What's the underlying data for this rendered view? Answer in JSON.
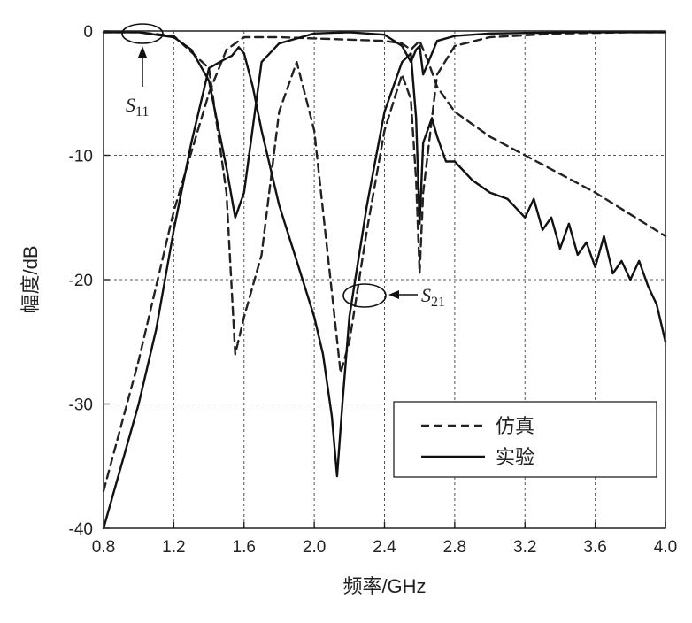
{
  "chart_data": {
    "type": "line",
    "xlabel": "频率/GHz",
    "ylabel": "幅度/dB",
    "xlim": [
      0.8,
      4.0
    ],
    "ylim": [
      -40,
      0
    ],
    "x_ticks": [
      "0.8",
      "1.2",
      "1.6",
      "2.0",
      "2.4",
      "2.8",
      "3.2",
      "3.6",
      "4.0"
    ],
    "y_ticks": [
      "0",
      "-10",
      "-20",
      "-30",
      "-40"
    ],
    "grid": true,
    "legend_position": "bottom-right",
    "legend": [
      "仿真",
      "实验"
    ],
    "annotations": [
      {
        "base": "S",
        "sub": "11"
      },
      {
        "base": "S",
        "sub": "21"
      }
    ],
    "series": [
      {
        "name": "仿真",
        "style": "dashed",
        "color": "#222222",
        "curves": [
          {
            "x": [
              0.8,
              1.0,
              1.2,
              1.4,
              1.5,
              1.55,
              1.6,
              1.7,
              1.8,
              1.9,
              2.0,
              2.1,
              2.15,
              2.2,
              2.3,
              2.4,
              2.5,
              2.55,
              2.58,
              2.6,
              2.62,
              2.7,
              2.8,
              3.0,
              3.4,
              3.8,
              4.0
            ],
            "y": [
              -0.1,
              -0.1,
              -0.4,
              -3,
              -13,
              -26,
              -23,
              -18,
              -6.5,
              -2.5,
              -8,
              -21,
              -27.5,
              -25,
              -16,
              -8,
              -3.5,
              -5.5,
              -12,
              -19.5,
              -13,
              -3.5,
              -1.2,
              -0.5,
              -0.2,
              -0.1,
              -0.1
            ]
          },
          {
            "x": [
              0.8,
              1.0,
              1.2,
              1.4,
              1.5,
              1.6,
              1.8,
              2.0,
              2.2,
              2.4,
              2.5,
              2.55,
              2.6,
              2.65,
              2.7,
              2.8,
              3.0,
              3.2,
              3.6,
              4.0
            ],
            "y": [
              -37,
              -26.5,
              -14.5,
              -5,
              -1.5,
              -0.5,
              -0.5,
              -0.6,
              -0.7,
              -0.8,
              -1,
              -1.5,
              -0.8,
              -2.5,
              -4.5,
              -6.5,
              -8.5,
              -10,
              -13,
              -16.5
            ]
          }
        ]
      },
      {
        "name": "实验",
        "style": "solid",
        "color": "#111111",
        "curves": [
          {
            "x": [
              0.8,
              1.0,
              1.1,
              1.2,
              1.3,
              1.4,
              1.5,
              1.53,
              1.57,
              1.6,
              1.65,
              1.7,
              1.8,
              1.9,
              2.0,
              2.05,
              2.1,
              2.13,
              2.16,
              2.2,
              2.3,
              2.4,
              2.5,
              2.55,
              2.58,
              2.6,
              2.62,
              2.67,
              2.7,
              2.75,
              2.8,
              2.9,
              3.0,
              3.1,
              3.2,
              3.25,
              3.3,
              3.35,
              3.4,
              3.45,
              3.5,
              3.55,
              3.6,
              3.65,
              3.7,
              3.75,
              3.8,
              3.85,
              3.9,
              3.95,
              4.0
            ],
            "y": [
              -40,
              -30,
              -24,
              -16,
              -9,
              -3,
              -2.2,
              -2,
              -1.3,
              -1.8,
              -4.5,
              -8,
              -14,
              -18.5,
              -23,
              -26,
              -31,
              -35.8,
              -30,
              -23,
              -14,
              -6.5,
              -2.5,
              -1.8,
              -7,
              -15.5,
              -9,
              -7,
              -8.5,
              -10.5,
              -10.5,
              -12,
              -13,
              -13.5,
              -15,
              -13.5,
              -16,
              -15,
              -17.5,
              -15.5,
              -18,
              -17,
              -19,
              -16.5,
              -19.5,
              -18.5,
              -20,
              -18.5,
              -20.5,
              -22,
              -25
            ]
          },
          {
            "x": [
              0.8,
              1.0,
              1.2,
              1.3,
              1.4,
              1.5,
              1.55,
              1.6,
              1.7,
              1.8,
              2.0,
              2.2,
              2.4,
              2.5,
              2.55,
              2.58,
              2.6,
              2.62,
              2.7,
              2.8,
              3.0,
              3.5,
              4.0
            ],
            "y": [
              -0.1,
              -0.1,
              -0.5,
              -1.5,
              -4,
              -11,
              -15,
              -13,
              -2.5,
              -1,
              -0.2,
              -0.1,
              -0.3,
              -1.2,
              -2.5,
              -1.5,
              -1.2,
              -3.5,
              -0.8,
              -0.4,
              -0.2,
              -0.1,
              -0.1
            ]
          }
        ]
      }
    ]
  }
}
